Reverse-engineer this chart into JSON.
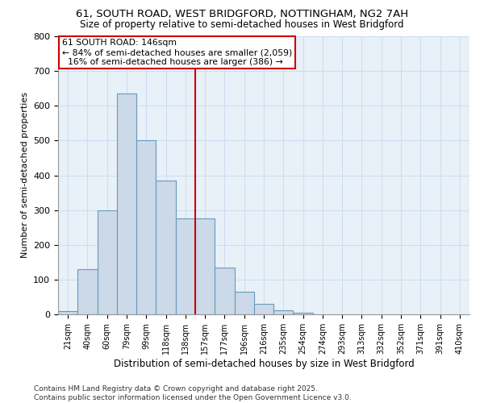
{
  "title1": "61, SOUTH ROAD, WEST BRIDGFORD, NOTTINGHAM, NG2 7AH",
  "title2": "Size of property relative to semi-detached houses in West Bridgford",
  "xlabel": "Distribution of semi-detached houses by size in West Bridgford",
  "ylabel": "Number of semi-detached properties",
  "footnote1": "Contains HM Land Registry data © Crown copyright and database right 2025.",
  "footnote2": "Contains public sector information licensed under the Open Government Licence v3.0.",
  "bar_labels": [
    "21sqm",
    "40sqm",
    "60sqm",
    "79sqm",
    "99sqm",
    "118sqm",
    "138sqm",
    "157sqm",
    "177sqm",
    "196sqm",
    "216sqm",
    "235sqm",
    "254sqm",
    "274sqm",
    "293sqm",
    "313sqm",
    "332sqm",
    "352sqm",
    "371sqm",
    "391sqm",
    "410sqm"
  ],
  "bar_values": [
    10,
    130,
    300,
    635,
    500,
    385,
    275,
    275,
    135,
    65,
    30,
    12,
    5,
    1,
    0,
    0,
    0,
    0,
    0,
    0,
    0
  ],
  "bar_color": "#ccd9e8",
  "bar_edge_color": "#6699bb",
  "grid_color": "#ccddf0",
  "background_color": "#e8f0f8",
  "annotation_box_line1": "61 SOUTH ROAD: 146sqm",
  "annotation_box_line2": "← 84% of semi-detached houses are smaller (2,059)",
  "annotation_box_line3": "  16% of semi-detached houses are larger (386) →",
  "vline_color": "#cc0000",
  "ylim": [
    0,
    800
  ],
  "yticks": [
    0,
    100,
    200,
    300,
    400,
    500,
    600,
    700,
    800
  ]
}
